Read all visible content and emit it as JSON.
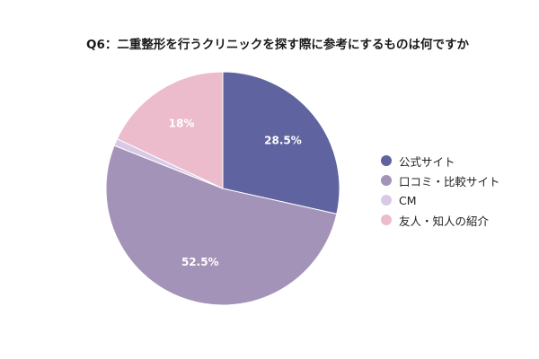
{
  "chart_data": {
    "type": "pie",
    "title": "Q6：二重整形を行うクリニックを探す際に参考にするものは何ですか",
    "slices": [
      {
        "name": "公式サイト",
        "value": 28.5,
        "label": "28.5%",
        "color": "#5f64a0"
      },
      {
        "name": "口コミ・比較サイト",
        "value": 52.5,
        "label": "52.5%",
        "color": "#a493b8"
      },
      {
        "name": "CM",
        "value": 1,
        "label": "",
        "color": "#d9c9e6"
      },
      {
        "name": "友人・知人の紹介",
        "value": 18,
        "label": "18%",
        "color": "#ecbccd"
      }
    ],
    "start_angle_deg": 0,
    "direction": "clockwise",
    "legend_position": "right"
  }
}
